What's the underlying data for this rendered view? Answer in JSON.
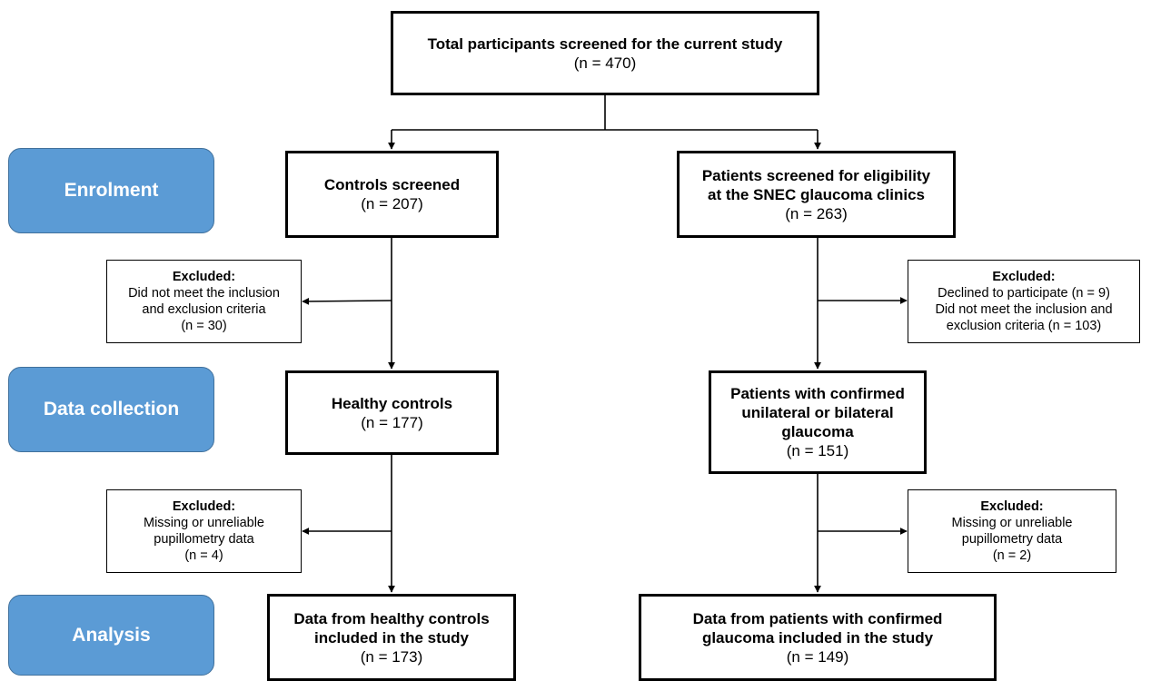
{
  "phases": {
    "enrolment": "Enrolment",
    "data_collection": "Data collection",
    "analysis": "Analysis"
  },
  "boxes": {
    "total": {
      "title": [
        "Total participants screened for the current study"
      ],
      "lines": [
        "(n = 470)"
      ]
    },
    "controls_screened": {
      "title": [
        "Controls screened"
      ],
      "lines": [
        "(n = 207)"
      ]
    },
    "patients_screened": {
      "title": [
        "Patients screened for eligibility",
        "at the SNEC glaucoma clinics"
      ],
      "lines": [
        "(n = 263)"
      ]
    },
    "healthy_controls": {
      "title": [
        "Healthy controls"
      ],
      "lines": [
        "(n = 177)"
      ]
    },
    "patients_confirmed": {
      "title": [
        "Patients with confirmed",
        "unilateral or bilateral",
        "glaucoma"
      ],
      "lines": [
        "(n = 151)"
      ]
    },
    "data_controls": {
      "title": [
        "Data from healthy controls",
        "included in the study"
      ],
      "lines": [
        "(n = 173)"
      ]
    },
    "data_patients": {
      "title": [
        "Data from patients with confirmed",
        "glaucoma included in the study"
      ],
      "lines": [
        "(n = 149)"
      ]
    }
  },
  "excluded": {
    "controls_1": {
      "title": [
        "Excluded:"
      ],
      "lines": [
        "Did not meet the inclusion",
        "and exclusion criteria",
        "(n =  30)"
      ]
    },
    "patients_1": {
      "title": [
        "Excluded:"
      ],
      "lines": [
        "Declined to participate (n = 9)",
        "Did not meet the inclusion and",
        "exclusion criteria (n = 103)"
      ]
    },
    "controls_2": {
      "title": [
        "Excluded:"
      ],
      "lines": [
        "Missing or unreliable",
        "pupillometry data",
        "(n = 4)"
      ]
    },
    "patients_2": {
      "title": [
        "Excluded:"
      ],
      "lines": [
        "Missing or unreliable",
        "pupillometry data",
        "(n = 2)"
      ]
    }
  }
}
